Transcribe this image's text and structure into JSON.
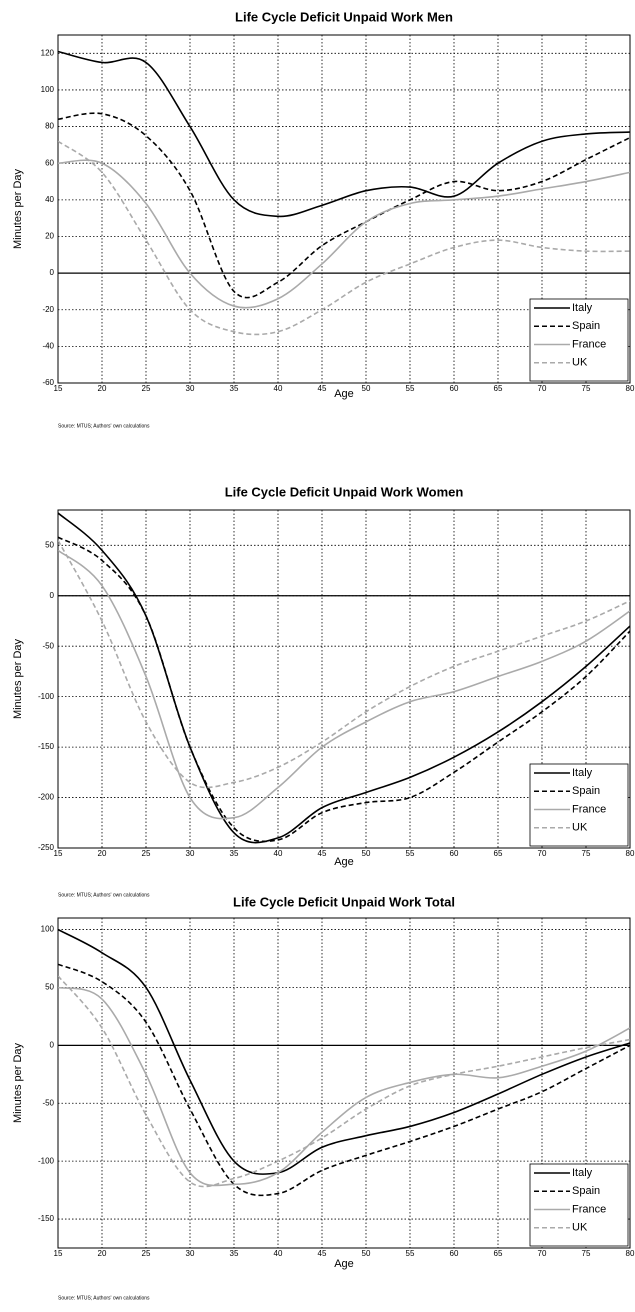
{
  "chart_data": [
    {
      "type": "line",
      "title": "Life Cycle Deficit Unpaid Work Men",
      "x_label": "Age",
      "y_label": "Minutes per Day",
      "source": "Source: MTUS; Authors' own calculations",
      "x": [
        15,
        20,
        25,
        30,
        35,
        40,
        45,
        50,
        55,
        60,
        65,
        70,
        75,
        80
      ],
      "xlim": [
        15,
        80
      ],
      "xticks": [
        15,
        20,
        25,
        30,
        35,
        40,
        45,
        50,
        55,
        60,
        65,
        70,
        75,
        80
      ],
      "ylim": [
        -60,
        130
      ],
      "yticks": [
        -60,
        -40,
        -20,
        0,
        20,
        40,
        60,
        80,
        100,
        120
      ],
      "grid": true,
      "legend": "lower right",
      "series": [
        {
          "name": "Italy",
          "color": "#000000",
          "line_style": "solid",
          "values": [
            121,
            115,
            115,
            80,
            40,
            31,
            37,
            45,
            47,
            42,
            60,
            72,
            76,
            77
          ]
        },
        {
          "name": "Spain",
          "color": "#000000",
          "line_style": "dashed",
          "values": [
            84,
            87,
            75,
            45,
            -10,
            -5,
            15,
            28,
            40,
            50,
            45,
            50,
            62,
            74
          ]
        },
        {
          "name": "France",
          "color": "#aaaaaa",
          "line_style": "solid",
          "values": [
            60,
            60,
            38,
            0,
            -18,
            -14,
            5,
            28,
            38,
            40,
            42,
            46,
            50,
            55
          ]
        },
        {
          "name": "UK",
          "color": "#aaaaaa",
          "line_style": "dashed",
          "values": [
            72,
            55,
            18,
            -20,
            -32,
            -32,
            -20,
            -5,
            5,
            14,
            18,
            14,
            12,
            12
          ]
        }
      ]
    },
    {
      "type": "line",
      "title": "Life Cycle Deficit Unpaid Work Women",
      "x_label": "Age",
      "y_label": "Minutes per Day",
      "source": "Source: MTUS; Authors' own calculations",
      "x": [
        15,
        20,
        25,
        30,
        35,
        40,
        45,
        50,
        55,
        60,
        65,
        70,
        75,
        80
      ],
      "xlim": [
        15,
        80
      ],
      "xticks": [
        15,
        20,
        25,
        30,
        35,
        40,
        45,
        50,
        55,
        60,
        65,
        70,
        75,
        80
      ],
      "ylim": [
        -250,
        85
      ],
      "yticks": [
        -250,
        -200,
        -150,
        -100,
        -50,
        0,
        50
      ],
      "grid": true,
      "legend": "lower right",
      "series": [
        {
          "name": "Italy",
          "color": "#000000",
          "line_style": "solid",
          "values": [
            82,
            45,
            -20,
            -150,
            -235,
            -240,
            -210,
            -195,
            -180,
            -160,
            -135,
            -105,
            -70,
            -30
          ]
        },
        {
          "name": "Spain",
          "color": "#000000",
          "line_style": "dashed",
          "values": [
            58,
            35,
            -20,
            -150,
            -230,
            -242,
            -215,
            -205,
            -200,
            -175,
            -145,
            -115,
            -80,
            -35
          ]
        },
        {
          "name": "France",
          "color": "#aaaaaa",
          "line_style": "solid",
          "values": [
            45,
            10,
            -80,
            -200,
            -220,
            -190,
            -150,
            -125,
            -105,
            -95,
            -80,
            -65,
            -45,
            -15
          ]
        },
        {
          "name": "UK",
          "color": "#aaaaaa",
          "line_style": "dashed",
          "values": [
            55,
            -25,
            -125,
            -185,
            -185,
            -170,
            -145,
            -115,
            -90,
            -70,
            -55,
            -40,
            -25,
            -5
          ]
        }
      ]
    },
    {
      "type": "line",
      "title": "Life Cycle Deficit Unpaid Work Total",
      "x_label": "Age",
      "y_label": "Minutes per Day",
      "source": "Source: MTUS; Authors' own calculations",
      "x": [
        15,
        20,
        25,
        30,
        35,
        40,
        45,
        50,
        55,
        60,
        65,
        70,
        75,
        80
      ],
      "xlim": [
        15,
        80
      ],
      "xticks": [
        15,
        20,
        25,
        30,
        35,
        40,
        45,
        50,
        55,
        60,
        65,
        70,
        75,
        80
      ],
      "ylim": [
        -175,
        110
      ],
      "yticks": [
        -150,
        -100,
        -50,
        0,
        50,
        100
      ],
      "grid": true,
      "legend": "lower right",
      "series": [
        {
          "name": "Italy",
          "color": "#000000",
          "line_style": "solid",
          "values": [
            100,
            80,
            50,
            -30,
            -100,
            -110,
            -88,
            -78,
            -70,
            -58,
            -42,
            -25,
            -10,
            2
          ]
        },
        {
          "name": "Spain",
          "color": "#000000",
          "line_style": "dashed",
          "values": [
            70,
            55,
            20,
            -55,
            -120,
            -128,
            -108,
            -95,
            -83,
            -70,
            -55,
            -40,
            -20,
            0
          ]
        },
        {
          "name": "France",
          "color": "#aaaaaa",
          "line_style": "solid",
          "values": [
            50,
            40,
            -25,
            -110,
            -120,
            -110,
            -75,
            -45,
            -32,
            -25,
            -28,
            -18,
            -5,
            15
          ]
        },
        {
          "name": "UK",
          "color": "#aaaaaa",
          "line_style": "dashed",
          "values": [
            60,
            15,
            -60,
            -118,
            -115,
            -100,
            -80,
            -55,
            -35,
            -25,
            -18,
            -10,
            -2,
            5
          ]
        }
      ]
    }
  ]
}
